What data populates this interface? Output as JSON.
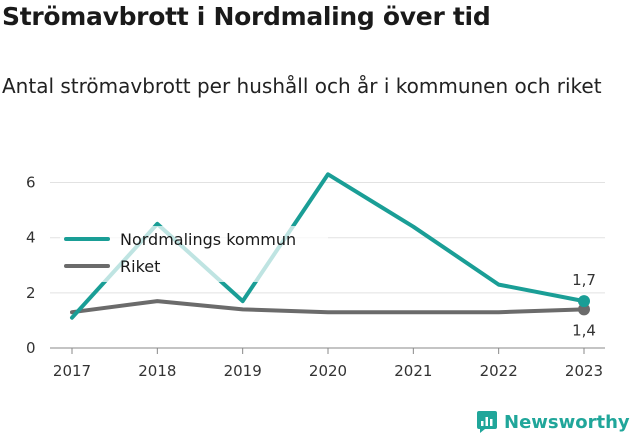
{
  "header": {
    "title": "Strömavbrott i Nordmaling över tid",
    "subtitle": "Antal strömavbrott per hushåll och år i kommunen och riket"
  },
  "brand": {
    "name": "Newsworthy",
    "icon": "newsworthy-logo-icon"
  },
  "colors": {
    "primary": "#1a9e96",
    "secondary": "#6b6b6b",
    "grid": "#e2e2e2",
    "brand": "#20a69a"
  },
  "chart_data": {
    "type": "line",
    "x": [
      "2017",
      "2018",
      "2019",
      "2020",
      "2021",
      "2022",
      "2023"
    ],
    "series": [
      {
        "name": "Nordmalings kommun",
        "color": "#1a9e96",
        "values": [
          1.1,
          4.5,
          1.7,
          6.3,
          4.4,
          2.3,
          1.7
        ]
      },
      {
        "name": "Riket",
        "color": "#6b6b6b",
        "values": [
          1.3,
          1.7,
          1.4,
          1.3,
          1.3,
          1.3,
          1.4
        ]
      }
    ],
    "yticks": [
      "0",
      "2",
      "4",
      "6"
    ],
    "ylim": [
      0,
      6.6
    ],
    "end_labels": [
      "1,7",
      "1,4"
    ],
    "grid": true,
    "legend_position": "top-left"
  }
}
